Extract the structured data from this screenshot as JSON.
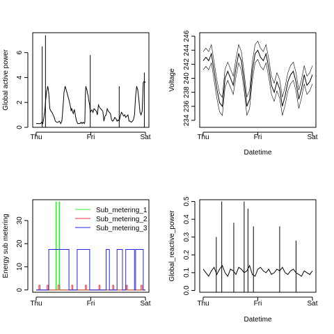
{
  "chart_data": [
    {
      "type": "line",
      "xlabel": "",
      "ylabel": "Global active power",
      "x_ticks": [
        "Thu",
        "Fri",
        "Sat"
      ],
      "xlim": [
        "Thu",
        "Sat"
      ],
      "ylim": [
        0,
        7.6
      ],
      "y_ticks": [
        0,
        2,
        4,
        6
      ],
      "grid": false,
      "series": [
        {
          "color": "#000000",
          "x": [
            0.0,
            0.08,
            0.1,
            0.12,
            0.13,
            0.14,
            0.15,
            0.16,
            0.17,
            0.18,
            0.19,
            0.2,
            0.21,
            0.22,
            0.23,
            0.25,
            0.27,
            0.29,
            0.31,
            0.33,
            0.35,
            0.38,
            0.4,
            0.42,
            0.44,
            0.45,
            0.46,
            0.47,
            0.48,
            0.49,
            0.5,
            0.51,
            0.53,
            0.55,
            0.6,
            0.63,
            0.64,
            0.65,
            0.66,
            0.67,
            0.68,
            0.69,
            0.7,
            0.71,
            0.72,
            0.73,
            0.74,
            0.75,
            0.76,
            0.78,
            0.8,
            0.82,
            0.84,
            0.86,
            0.88,
            0.89,
            0.9,
            0.91,
            0.92,
            0.93,
            0.94,
            0.95,
            0.96,
            0.97,
            0.98,
            0.99,
            1.0,
            1.02,
            1.04,
            1.06,
            1.08,
            1.1,
            1.12,
            1.14,
            1.16,
            1.18,
            1.2,
            1.22,
            1.24,
            1.26,
            1.28,
            1.3,
            1.32,
            1.34,
            1.36,
            1.38,
            1.4,
            1.42,
            1.44,
            1.46,
            1.48,
            1.5,
            1.52,
            1.54,
            1.56,
            1.58,
            1.6,
            1.62,
            1.64,
            1.66,
            1.68,
            1.7,
            1.72,
            1.74,
            1.76,
            1.78,
            1.8,
            1.82,
            1.84,
            1.86,
            1.88,
            1.9,
            1.92,
            1.94,
            1.96,
            1.98,
            2.0
          ],
          "values": [
            0.3,
            0.3,
            0.4,
            0.3,
            0.5,
            0.8,
            1.1,
            1.5,
            2.0,
            2.4,
            2.9,
            3.0,
            3.3,
            3.1,
            2.7,
            1.5,
            1.3,
            1.2,
            1.0,
            0.8,
            0.5,
            0.4,
            0.4,
            0.5,
            0.4,
            0.3,
            0.4,
            0.5,
            1.0,
            1.6,
            2.2,
            2.8,
            3.3,
            3.0,
            2.2,
            1.6,
            1.3,
            1.5,
            1.4,
            1.2,
            1.1,
            1.3,
            1.4,
            1.2,
            0.9,
            0.7,
            0.5,
            0.4,
            0.3,
            0.3,
            0.3,
            0.4,
            0.3,
            0.4,
            0.3,
            0.4,
            2.6,
            3.3,
            3.1,
            3.0,
            2.7,
            2.6,
            2.2,
            2.0,
            1.8,
            1.2,
            1.3,
            1.4,
            1.2,
            1.5,
            1.4,
            1.3,
            1.0,
            1.8,
            1.6,
            1.5,
            1.4,
            1.3,
            0.5,
            0.9,
            1.0,
            1.5,
            1.3,
            1.2,
            1.1,
            0.6,
            0.5,
            0.6,
            0.8,
            0.7,
            0.5,
            0.6,
            0.5,
            0.9,
            1.2,
            1.1,
            0.9,
            1.0,
            0.8,
            0.9,
            1.0,
            0.5,
            0.5,
            0.4,
            0.5,
            0.6,
            1.0,
            2.5,
            3.3,
            3.0,
            2.2,
            1.2,
            1.0,
            1.3,
            3.6,
            3.7,
            3.6
          ]
        }
      ],
      "spikes": [
        {
          "x": 0.11,
          "y": 6.5
        },
        {
          "x": 0.17,
          "y": 7.4
        },
        {
          "x": 0.99,
          "y": 5.8
        },
        {
          "x": 1.52,
          "y": 3.3
        },
        {
          "x": 1.98,
          "y": 4.4
        }
      ]
    },
    {
      "type": "line",
      "xlabel": "Datetime",
      "ylabel": "Voltage",
      "x_ticks": [
        "Thu",
        "Fri",
        "Sat"
      ],
      "xlim": [
        "Thu",
        "Sat"
      ],
      "ylim": [
        233,
        246.5
      ],
      "y_ticks": [
        234,
        236,
        238,
        240,
        242,
        244,
        246
      ],
      "grid": false,
      "series": [
        {
          "color": "#000000",
          "x": [
            0.0,
            0.05,
            0.1,
            0.15,
            0.2,
            0.25,
            0.3,
            0.35,
            0.4,
            0.45,
            0.5,
            0.55,
            0.6,
            0.65,
            0.7,
            0.75,
            0.8,
            0.85,
            0.9,
            0.95,
            1.0,
            1.05,
            1.1,
            1.15,
            1.2,
            1.25,
            1.3,
            1.35,
            1.4,
            1.45,
            1.5,
            1.55,
            1.6,
            1.65,
            1.7,
            1.75,
            1.8,
            1.85,
            1.9,
            1.95,
            2.0
          ],
          "values": [
            242.5,
            243.0,
            242.5,
            243.5,
            241.0,
            238.5,
            236.5,
            236.0,
            240.0,
            241.0,
            240.0,
            239.0,
            241.5,
            243.5,
            242.5,
            239.5,
            236.0,
            237.0,
            241.0,
            243.5,
            244.0,
            243.0,
            242.5,
            243.5,
            241.5,
            239.0,
            238.0,
            239.5,
            238.5,
            236.0,
            237.5,
            239.5,
            240.5,
            241.0,
            239.5,
            237.0,
            238.5,
            240.5,
            239.0,
            239.5,
            240.5
          ]
        }
      ],
      "ranges": {
        "min_seen": 233.0,
        "max_seen": 246.3
      }
    },
    {
      "type": "line",
      "xlabel": "",
      "ylabel": "Energy sub metering",
      "x_ticks": [
        "Thu",
        "Fri",
        "Sat"
      ],
      "xlim": [
        "Thu",
        "Sat"
      ],
      "ylim": [
        -1,
        39
      ],
      "y_ticks": [
        0,
        10,
        20,
        30
      ],
      "grid": false,
      "legend": "top-right",
      "series": [
        {
          "name": "Sub_metering_1",
          "color": "#33ee33",
          "x": [
            0.0,
            0.36,
            0.36,
            0.37,
            0.37,
            0.42,
            0.42,
            0.43,
            0.43,
            2.0
          ],
          "values": [
            0,
            0,
            38,
            38,
            0,
            0,
            38,
            38,
            0,
            0
          ]
        },
        {
          "name": "Sub_metering_2",
          "color": "#ee3333",
          "x": [
            0.0,
            0.05,
            0.05,
            0.07,
            0.07,
            0.2,
            0.2,
            0.22,
            0.22,
            0.4,
            0.4,
            0.43,
            0.43,
            0.65,
            0.65,
            0.67,
            0.67,
            0.9,
            0.9,
            0.92,
            0.92,
            1.15,
            1.15,
            1.17,
            1.17,
            1.4,
            1.4,
            1.42,
            1.42,
            1.65,
            1.65,
            1.67,
            1.67,
            1.92,
            1.92,
            1.94,
            1.94,
            2.0
          ],
          "values": [
            0,
            0,
            2,
            2,
            0,
            0,
            2,
            2,
            0,
            0,
            2,
            2,
            0,
            0,
            2,
            2,
            0,
            0,
            2,
            2,
            0,
            0,
            2,
            2,
            0,
            0,
            2,
            2,
            0,
            0,
            2,
            2,
            0,
            0,
            2,
            2,
            0,
            0
          ]
        },
        {
          "name": "Sub_metering_3",
          "color": "#2222ee",
          "x": [
            0.0,
            0.23,
            0.23,
            0.6,
            0.6,
            0.75,
            0.75,
            0.98,
            0.98,
            1.28,
            1.28,
            1.34,
            1.34,
            1.48,
            1.48,
            1.58,
            1.58,
            1.64,
            1.64,
            1.8,
            1.8,
            1.82,
            1.82,
            1.96,
            1.96,
            2.0
          ],
          "values": [
            0,
            0,
            17.5,
            17.5,
            0,
            0,
            17.5,
            17.5,
            0,
            0,
            17.5,
            17.5,
            0,
            0,
            17.5,
            17.5,
            0,
            0,
            17.5,
            17.5,
            0,
            0,
            17.5,
            17.5,
            0,
            0
          ]
        }
      ]
    },
    {
      "type": "line",
      "xlabel": "Datetime",
      "ylabel": "Global_reactive_power",
      "x_ticks": [
        "Thu",
        "Fri",
        "Sat"
      ],
      "xlim": [
        "Thu",
        "Sat"
      ],
      "ylim": [
        -0.01,
        0.51
      ],
      "y_ticks": [
        0.0,
        0.1,
        0.2,
        0.3,
        0.4,
        0.5
      ],
      "grid": false,
      "series": [
        {
          "color": "#000000",
          "x": [
            0.0,
            0.05,
            0.1,
            0.15,
            0.2,
            0.25,
            0.3,
            0.35,
            0.4,
            0.45,
            0.5,
            0.55,
            0.6,
            0.65,
            0.7,
            0.75,
            0.8,
            0.85,
            0.9,
            0.95,
            1.0,
            1.05,
            1.1,
            1.15,
            1.2,
            1.25,
            1.3,
            1.35,
            1.4,
            1.45,
            1.5,
            1.55,
            1.6,
            1.65,
            1.7,
            1.75,
            1.8,
            1.85,
            1.9,
            1.95,
            2.0
          ],
          "values": [
            0.12,
            0.1,
            0.08,
            0.11,
            0.13,
            0.09,
            0.12,
            0.14,
            0.1,
            0.08,
            0.12,
            0.11,
            0.09,
            0.13,
            0.12,
            0.1,
            0.11,
            0.14,
            0.09,
            0.08,
            0.12,
            0.13,
            0.11,
            0.1,
            0.12,
            0.09,
            0.1,
            0.12,
            0.11,
            0.13,
            0.1,
            0.09,
            0.11,
            0.12,
            0.1,
            0.09,
            0.08,
            0.11,
            0.1,
            0.09,
            0.11
          ]
        }
      ],
      "spikes": [
        {
          "x": 0.34,
          "y": 0.5
        },
        {
          "x": 0.24,
          "y": 0.3
        },
        {
          "x": 0.75,
          "y": 0.5
        },
        {
          "x": 0.82,
          "y": 0.46
        },
        {
          "x": 0.92,
          "y": 0.36
        },
        {
          "x": 0.56,
          "y": 0.38
        },
        {
          "x": 1.4,
          "y": 0.36
        },
        {
          "x": 1.7,
          "y": 0.28
        }
      ]
    }
  ]
}
